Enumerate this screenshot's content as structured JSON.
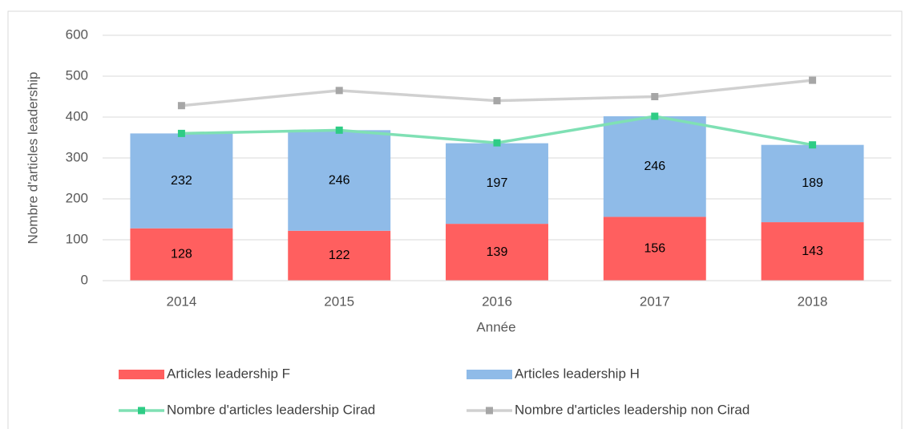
{
  "chart_data": {
    "type": "bar",
    "stacked": true,
    "xlabel": "Année",
    "ylabel": "Nombre d'articles leadership",
    "categories": [
      "2014",
      "2015",
      "2016",
      "2017",
      "2018"
    ],
    "series": [
      {
        "name": "Articles leadership F",
        "color": "#ff5f5f",
        "values": [
          128,
          122,
          139,
          156,
          143
        ]
      },
      {
        "name": "Articles leadership H",
        "color": "#8fbbe8",
        "values": [
          232,
          246,
          197,
          246,
          189
        ]
      },
      {
        "name": "Nombre d'articles leadership Cirad",
        "color": "#7fe0b4",
        "marker_color": "#2ecc85",
        "type": "line",
        "values": [
          360,
          368,
          337,
          402,
          332
        ]
      },
      {
        "name": "Nombre d'articles leadership non Cirad",
        "color": "#d0d0d0",
        "marker_color": "#a6a6a6",
        "type": "line",
        "values": [
          428,
          465,
          440,
          450,
          490
        ]
      }
    ],
    "ylim": [
      0,
      600
    ],
    "yticks": [
      0,
      100,
      200,
      300,
      400,
      500,
      600
    ],
    "grid": true
  }
}
